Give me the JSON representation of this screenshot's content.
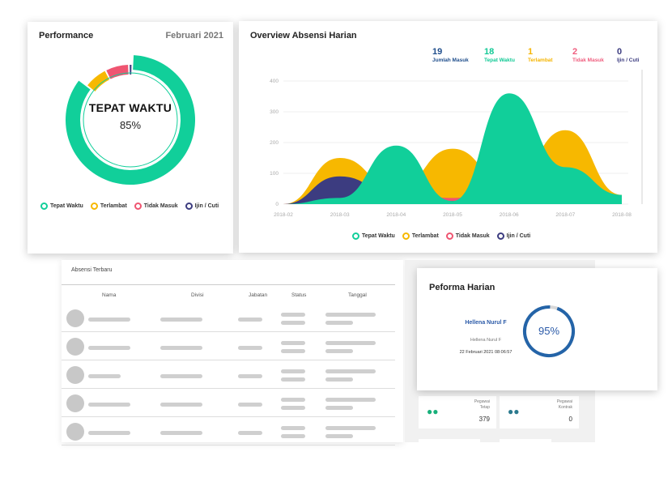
{
  "performance": {
    "title": "Performance",
    "month": "Februari 2021",
    "center_label": "TEPAT WAKTU",
    "center_value": "85%",
    "legend": [
      "Tepat Waktu",
      "Terlambat",
      "Tidak Masuk",
      "Ijin / Cuti"
    ]
  },
  "overview": {
    "title": "Overview Absensi Harian",
    "stats": [
      {
        "value": "19",
        "label": "Jumlah Masuk",
        "color": "#1f4e8c"
      },
      {
        "value": "18",
        "label": "Tepat Waktu",
        "color": "#11c995"
      },
      {
        "value": "1",
        "label": "Terlambat",
        "color": "#f5b400"
      },
      {
        "value": "2",
        "label": "Tidak Masuk",
        "color": "#ef5d7e"
      },
      {
        "value": "0",
        "label": "Ijin / Cuti",
        "color": "#3c3c80"
      }
    ],
    "legend": [
      "Tepat Waktu",
      "Terlambat",
      "Tidak Masuk",
      "Ijin / Cuti"
    ]
  },
  "colors": {
    "tepat": "#11cf9a",
    "terlambat": "#f7b800",
    "tidak": "#ef5571",
    "ijin": "#3c3c80",
    "blue": "#2464a8"
  },
  "chart_data": [
    {
      "type": "pie",
      "title": "Performance",
      "categories": [
        "Tepat Waktu",
        "Terlambat",
        "Tidak Masuk",
        "Ijin / Cuti"
      ],
      "values": [
        85,
        7,
        7,
        1
      ]
    },
    {
      "type": "area",
      "title": "Overview Absensi Harian",
      "x": [
        "2018-02",
        "2018-03",
        "2018-04",
        "2018-05",
        "2018-06",
        "2018-07",
        "2018-08"
      ],
      "ylim": [
        0,
        400
      ],
      "yticks": [
        0,
        100,
        200,
        300,
        400
      ],
      "series": [
        {
          "name": "Terlambat",
          "values": [
            0,
            150,
            50,
            180,
            60,
            240,
            30
          ]
        },
        {
          "name": "Tidak Masuk",
          "values": [
            0,
            50,
            40,
            20,
            40,
            20,
            10
          ]
        },
        {
          "name": "Ijin / Cuti",
          "values": [
            0,
            90,
            30,
            10,
            50,
            20,
            10
          ]
        },
        {
          "name": "Tepat Waktu",
          "values": [
            0,
            20,
            190,
            10,
            360,
            120,
            30
          ]
        }
      ]
    }
  ],
  "table": {
    "title": "Absensi Terbaru",
    "headers": [
      "Nama",
      "Divisi",
      "Jabatan",
      "Status",
      "Tanggal"
    ]
  },
  "mini_cards": [
    {
      "caption": "Pegawai\nTetap",
      "value": "379"
    },
    {
      "caption": "Pegawai\nKontrak",
      "value": "0"
    }
  ],
  "peforma": {
    "title": "Peforma Harian",
    "name": "Hellena Nurul F",
    "subname": "Hellena Nurul F",
    "datetime": "22 Februari 2021 08:06:57",
    "value": "95%",
    "fraction": 0.95
  }
}
